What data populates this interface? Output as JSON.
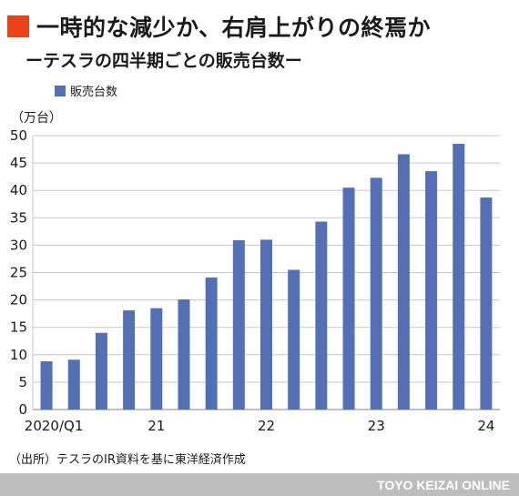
{
  "header": {
    "title": "一時的な減少か、右肩上がりの終焉か",
    "subtitle": "ーテスラの四半期ごとの販売台数ー"
  },
  "unit_label": "（万台）",
  "source": "（出所）テスラのIR資料を基に東洋経済作成",
  "footer": "TOYO KEIZAI ONLINE",
  "colors": {
    "bar": "#5470b4",
    "accent": "#e8431b",
    "grid": "#c8c8c8",
    "footer_bg": "#bdbdbd"
  },
  "chart_data": {
    "type": "bar",
    "title": "一時的な減少か、右肩上がりの終焉か",
    "subtitle": "ーテスラの四半期ごとの販売台数ー",
    "xlabel": "",
    "ylabel": "（万台）",
    "ylim": [
      0,
      50
    ],
    "yticks": [
      0,
      5,
      10,
      15,
      20,
      25,
      30,
      35,
      40,
      45,
      50
    ],
    "grid": true,
    "legend_position": "top-left",
    "x_tick_labels": [
      {
        "label": "2020/Q1",
        "index": 0
      },
      {
        "label": "21",
        "index": 4
      },
      {
        "label": "22",
        "index": 8
      },
      {
        "label": "23",
        "index": 12
      },
      {
        "label": "24",
        "index": 16
      }
    ],
    "series": [
      {
        "name": "販売台数",
        "values": [
          8.8,
          9.1,
          14.0,
          18.1,
          18.5,
          20.1,
          24.1,
          30.9,
          31.0,
          25.5,
          34.3,
          40.5,
          42.3,
          46.6,
          43.5,
          48.5,
          38.7
        ]
      }
    ]
  }
}
